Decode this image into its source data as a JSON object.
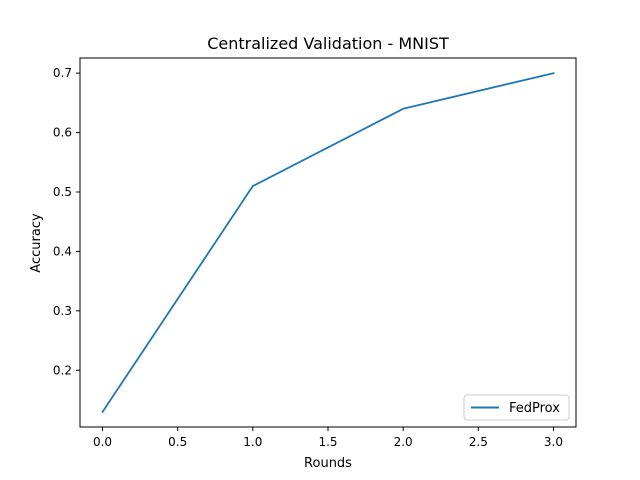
{
  "chart_data": {
    "type": "line",
    "title": "Centralized Validation - MNIST",
    "xlabel": "Rounds",
    "ylabel": "Accuracy",
    "xlim": [
      -0.15,
      3.15
    ],
    "ylim": [
      0.1045,
      0.7255
    ],
    "xticks": [
      "0.0",
      "0.5",
      "1.0",
      "1.5",
      "2.0",
      "2.5",
      "3.0"
    ],
    "yticks": [
      "0.2",
      "0.3",
      "0.4",
      "0.5",
      "0.6",
      "0.7"
    ],
    "grid": false,
    "legend_position": "lower right",
    "series": [
      {
        "name": "FedProx",
        "color": "#1f77b4",
        "x": [
          0,
          1,
          2,
          3
        ],
        "y": [
          0.13,
          0.51,
          0.64,
          0.7
        ]
      }
    ]
  }
}
